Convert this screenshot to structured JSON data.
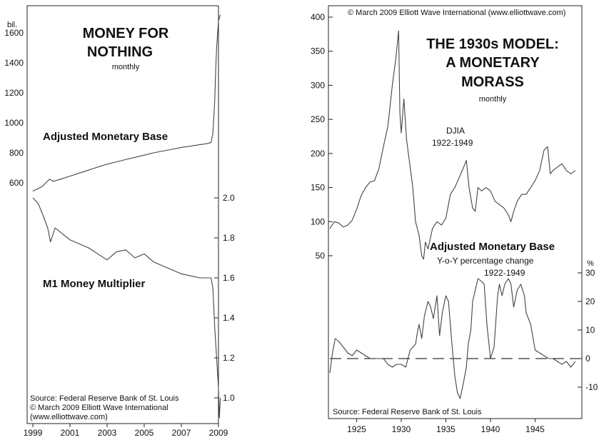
{
  "chart_data": [
    {
      "type": "line",
      "title": [
        "MONEY FOR",
        "NOTHING"
      ],
      "subtitle": "monthly",
      "left_axis_unit": "bil.",
      "left_ticks": [
        600,
        800,
        1000,
        1200,
        1400,
        1600
      ],
      "right_ticks": [
        "1.0",
        "1.2",
        "1.4",
        "1.6",
        "1.8",
        "2.0"
      ],
      "x_ticks": [
        "1999",
        "2001",
        "2003",
        "2005",
        "2007",
        "2009"
      ],
      "source_lines": [
        "Source: Federal Reserve Bank of St. Louis",
        "© March 2009 Elliott Wave International",
        "(www.elliottwave.com)"
      ],
      "series": [
        {
          "name": "Adjusted Monetary Base",
          "axis": "left",
          "x": [
            1999.0,
            1999.5,
            1999.9,
            2000.1,
            2000.5,
            2001.0,
            2001.5,
            2002.0,
            2002.5,
            2003.0,
            2003.5,
            2004.0,
            2004.5,
            2005.0,
            2005.5,
            2006.0,
            2006.5,
            2007.0,
            2007.5,
            2008.0,
            2008.3,
            2008.5,
            2008.6,
            2008.7,
            2008.8,
            2008.85,
            2008.9,
            2009.0,
            2009.1
          ],
          "values": [
            545,
            575,
            625,
            610,
            625,
            645,
            665,
            685,
            705,
            725,
            740,
            755,
            770,
            785,
            800,
            812,
            824,
            836,
            845,
            855,
            860,
            865,
            870,
            930,
            1150,
            1350,
            1500,
            1680,
            1720
          ]
        },
        {
          "name": "M1 Money Multiplier",
          "axis": "right",
          "x": [
            1999.0,
            1999.3,
            1999.6,
            1999.8,
            1999.95,
            2000.2,
            2000.6,
            2001.0,
            2001.5,
            2002.0,
            2002.5,
            2003.0,
            2003.5,
            2004.0,
            2004.5,
            2005.0,
            2005.5,
            2006.0,
            2006.5,
            2007.0,
            2007.5,
            2008.0,
            2008.4,
            2008.6,
            2008.7,
            2008.8,
            2008.9,
            2009.0,
            2009.05,
            2009.1
          ],
          "values": [
            2.0,
            1.97,
            1.9,
            1.85,
            1.78,
            1.85,
            1.82,
            1.79,
            1.77,
            1.75,
            1.72,
            1.69,
            1.73,
            1.74,
            1.7,
            1.72,
            1.68,
            1.66,
            1.64,
            1.62,
            1.61,
            1.6,
            1.6,
            1.6,
            1.55,
            1.35,
            1.2,
            1.05,
            0.9,
            1.0
          ]
        }
      ]
    },
    {
      "type": "line",
      "copyright": "© March 2009 Elliott Wave International (www.elliottwave.com)",
      "title": [
        "THE 1930s MODEL:",
        "A MONETARY",
        "MORASS"
      ],
      "subtitle": "monthly",
      "left_ticks": [
        50,
        100,
        150,
        200,
        250,
        300,
        350,
        400
      ],
      "right_axis_unit": "%",
      "right_ticks": [
        -10,
        0,
        10,
        20,
        30
      ],
      "x_ticks": [
        "1925",
        "1930",
        "1935",
        "1940",
        "1945"
      ],
      "source": "Source: Federal Reserve Bank of St. Louis",
      "series": [
        {
          "name": "DJIA",
          "label_lines": [
            "DJIA",
            "1922-1949"
          ],
          "axis": "left",
          "x": [
            1922.0,
            1922.5,
            1923.0,
            1923.5,
            1924.0,
            1924.5,
            1925.0,
            1925.5,
            1926.0,
            1926.5,
            1927.0,
            1927.5,
            1928.0,
            1928.5,
            1929.0,
            1929.4,
            1929.7,
            1929.85,
            1930.0,
            1930.3,
            1930.6,
            1931.0,
            1931.3,
            1931.6,
            1932.0,
            1932.3,
            1932.5,
            1932.7,
            1933.0,
            1933.5,
            1934.0,
            1934.5,
            1935.0,
            1935.5,
            1936.0,
            1936.5,
            1937.0,
            1937.3,
            1937.6,
            1938.0,
            1938.3,
            1938.6,
            1939.0,
            1939.5,
            1940.0,
            1940.5,
            1941.0,
            1941.5,
            1942.0,
            1942.3,
            1942.6,
            1943.0,
            1943.5,
            1944.0,
            1944.5,
            1945.0,
            1945.5,
            1946.0,
            1946.4,
            1946.7,
            1947.0,
            1947.5,
            1948.0,
            1948.5,
            1949.0,
            1949.5
          ],
          "values": [
            90,
            100,
            98,
            92,
            95,
            102,
            118,
            138,
            150,
            158,
            160,
            178,
            210,
            240,
            300,
            340,
            380,
            260,
            230,
            280,
            220,
            180,
            150,
            100,
            80,
            50,
            45,
            70,
            60,
            90,
            100,
            95,
            105,
            140,
            150,
            165,
            180,
            190,
            150,
            120,
            115,
            150,
            145,
            150,
            145,
            130,
            125,
            120,
            110,
            100,
            115,
            130,
            140,
            140,
            150,
            160,
            175,
            205,
            210,
            170,
            175,
            180,
            185,
            175,
            170,
            175
          ]
        },
        {
          "name": "Adjusted Monetary Base",
          "label_lines": [
            "Adjusted Monetary Base",
            "Y-o-Y percentage change",
            "1922-1949"
          ],
          "axis": "right",
          "zero_line": "dashed",
          "x": [
            1922.0,
            1922.3,
            1922.6,
            1923.0,
            1923.5,
            1924.0,
            1924.5,
            1925.0,
            1925.5,
            1926.0,
            1926.5,
            1927.0,
            1927.5,
            1928.0,
            1928.5,
            1929.0,
            1929.5,
            1930.0,
            1930.5,
            1931.0,
            1931.3,
            1931.6,
            1931.8,
            1932.0,
            1932.3,
            1932.6,
            1933.0,
            1933.3,
            1933.6,
            1934.0,
            1934.3,
            1934.6,
            1935.0,
            1935.3,
            1935.6,
            1936.0,
            1936.3,
            1936.6,
            1937.0,
            1937.3,
            1937.5,
            1937.8,
            1938.0,
            1938.3,
            1938.6,
            1939.0,
            1939.3,
            1939.6,
            1940.0,
            1940.4,
            1940.8,
            1941.0,
            1941.3,
            1941.6,
            1942.0,
            1942.3,
            1942.6,
            1943.0,
            1943.4,
            1943.8,
            1944.0,
            1944.5,
            1945.0,
            1945.5,
            1946.0,
            1946.5,
            1947.0,
            1947.5,
            1948.0,
            1948.5,
            1949.0,
            1949.5
          ],
          "values": [
            -5,
            2,
            7,
            6,
            4,
            2,
            1,
            3,
            2,
            1,
            0,
            0,
            0,
            0,
            -2,
            -3,
            -2,
            -2,
            -3,
            3,
            4,
            5,
            9,
            12,
            7,
            15,
            20,
            18,
            14,
            22,
            8,
            16,
            22,
            20,
            8,
            -6,
            -12,
            -14,
            -8,
            -3,
            5,
            10,
            20,
            24,
            28,
            27,
            26,
            12,
            0,
            4,
            22,
            26,
            22,
            26,
            28,
            26,
            18,
            24,
            26,
            22,
            16,
            12,
            3,
            2,
            1,
            0,
            0,
            -1,
            -2,
            -1,
            -3,
            -1
          ]
        }
      ]
    }
  ]
}
